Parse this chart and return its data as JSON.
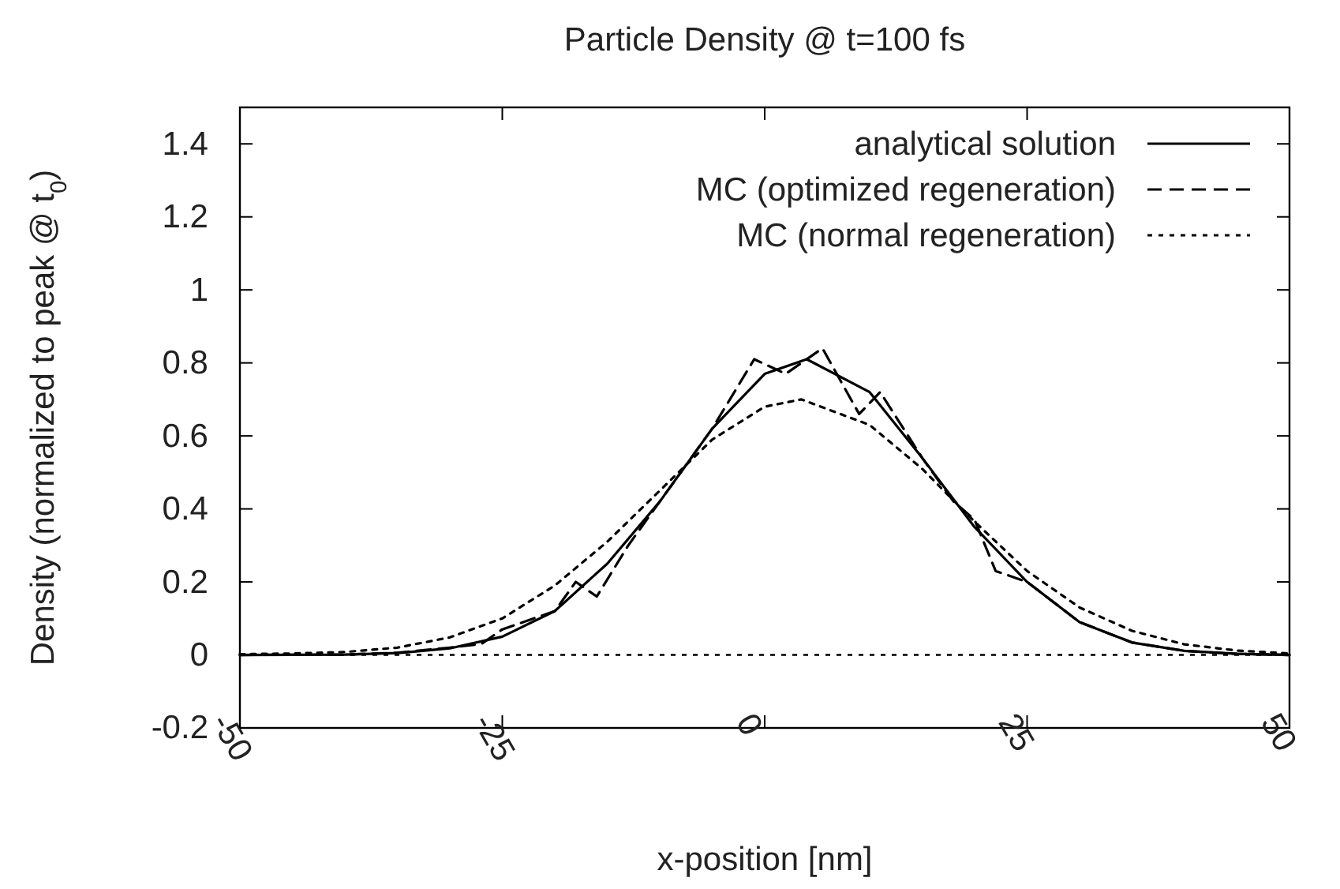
{
  "chart_data": {
    "type": "line",
    "title": "Particle Density @ t=100 fs",
    "xlabel": "x-position [nm]",
    "ylabel": "Density (normalized to peak @ t$_{0}$)",
    "xlim": [
      -50,
      50
    ],
    "xticks": [
      -50,
      -25,
      0,
      25,
      50
    ],
    "ylim": [
      -0.2,
      1.5
    ],
    "yticks": [
      -0.2,
      0,
      0.2,
      0.4,
      0.6,
      0.8,
      1,
      1.2,
      1.4
    ],
    "grid": false,
    "legend": "top right",
    "ref_lines": [
      {
        "axis": "y",
        "value": 0,
        "line_style": "dotted",
        "color": "#000000"
      }
    ],
    "series": [
      {
        "name": "analytical solution",
        "color": "#000000",
        "line_style": "solid",
        "x": [
          -50,
          -40,
          -35,
          -30,
          -25,
          -20,
          -15,
          -10,
          -5,
          0,
          4,
          10,
          15,
          20,
          25,
          30,
          35,
          40,
          45,
          50
        ],
        "values": [
          0,
          0.001,
          0.005,
          0.018,
          0.05,
          0.12,
          0.25,
          0.42,
          0.62,
          0.77,
          0.81,
          0.72,
          0.54,
          0.35,
          0.2,
          0.09,
          0.034,
          0.011,
          0.003,
          0
        ]
      },
      {
        "name": "MC (optimized regeneration)",
        "color": "#000000",
        "line_style": "dashed",
        "x": [
          -50,
          -40,
          -35,
          -30,
          -27,
          -25,
          -20,
          -18,
          -16,
          -13,
          -10,
          -5,
          -1,
          2,
          5.5,
          9,
          11,
          15,
          18,
          20,
          22,
          25,
          30,
          35,
          40,
          45,
          50
        ],
        "values": [
          0,
          0.001,
          0.006,
          0.02,
          0.03,
          0.07,
          0.12,
          0.2,
          0.16,
          0.3,
          0.42,
          0.62,
          0.81,
          0.77,
          0.84,
          0.66,
          0.72,
          0.54,
          0.42,
          0.37,
          0.23,
          0.2,
          0.09,
          0.034,
          0.011,
          0.003,
          0
        ]
      },
      {
        "name": "MC (normal regeneration)",
        "color": "#000000",
        "line_style": "dotted",
        "x": [
          -50,
          -45,
          -40,
          -35,
          -30,
          -25,
          -20,
          -15,
          -10,
          -5,
          0,
          3.5,
          10,
          15,
          20,
          25,
          30,
          35,
          40,
          45,
          50
        ],
        "values": [
          0.002,
          0.004,
          0.008,
          0.02,
          0.048,
          0.1,
          0.19,
          0.31,
          0.45,
          0.59,
          0.68,
          0.7,
          0.63,
          0.51,
          0.365,
          0.23,
          0.13,
          0.066,
          0.029,
          0.012,
          0.004
        ]
      }
    ]
  }
}
